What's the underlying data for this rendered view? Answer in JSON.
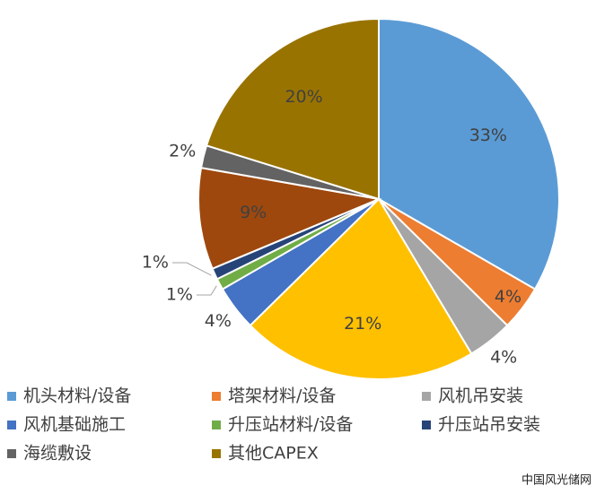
{
  "chart_data": {
    "type": "pie",
    "categories": [
      "机头材料/设备",
      "塔架材料/设备",
      "风机吊安装",
      null,
      "风机基础施工",
      "升压站材料/设备",
      "升压站吊安装",
      null,
      "海缆敷设",
      "其他CAPEX"
    ],
    "values": [
      33,
      4,
      4,
      21,
      4,
      1,
      1,
      9,
      2,
      20
    ],
    "value_labels": [
      "33%",
      "4%",
      "4%",
      "21%",
      "4%",
      "1%",
      "1%",
      "9%",
      "2%",
      "20%"
    ],
    "colors": [
      "#5b9bd5",
      "#ed7d31",
      "#a5a5a5",
      "#ffc000",
      "#4472c4",
      "#70ad47",
      "#264478",
      "#9e480e",
      "#636363",
      "#997300"
    ],
    "watermark": "中国风光储网"
  }
}
